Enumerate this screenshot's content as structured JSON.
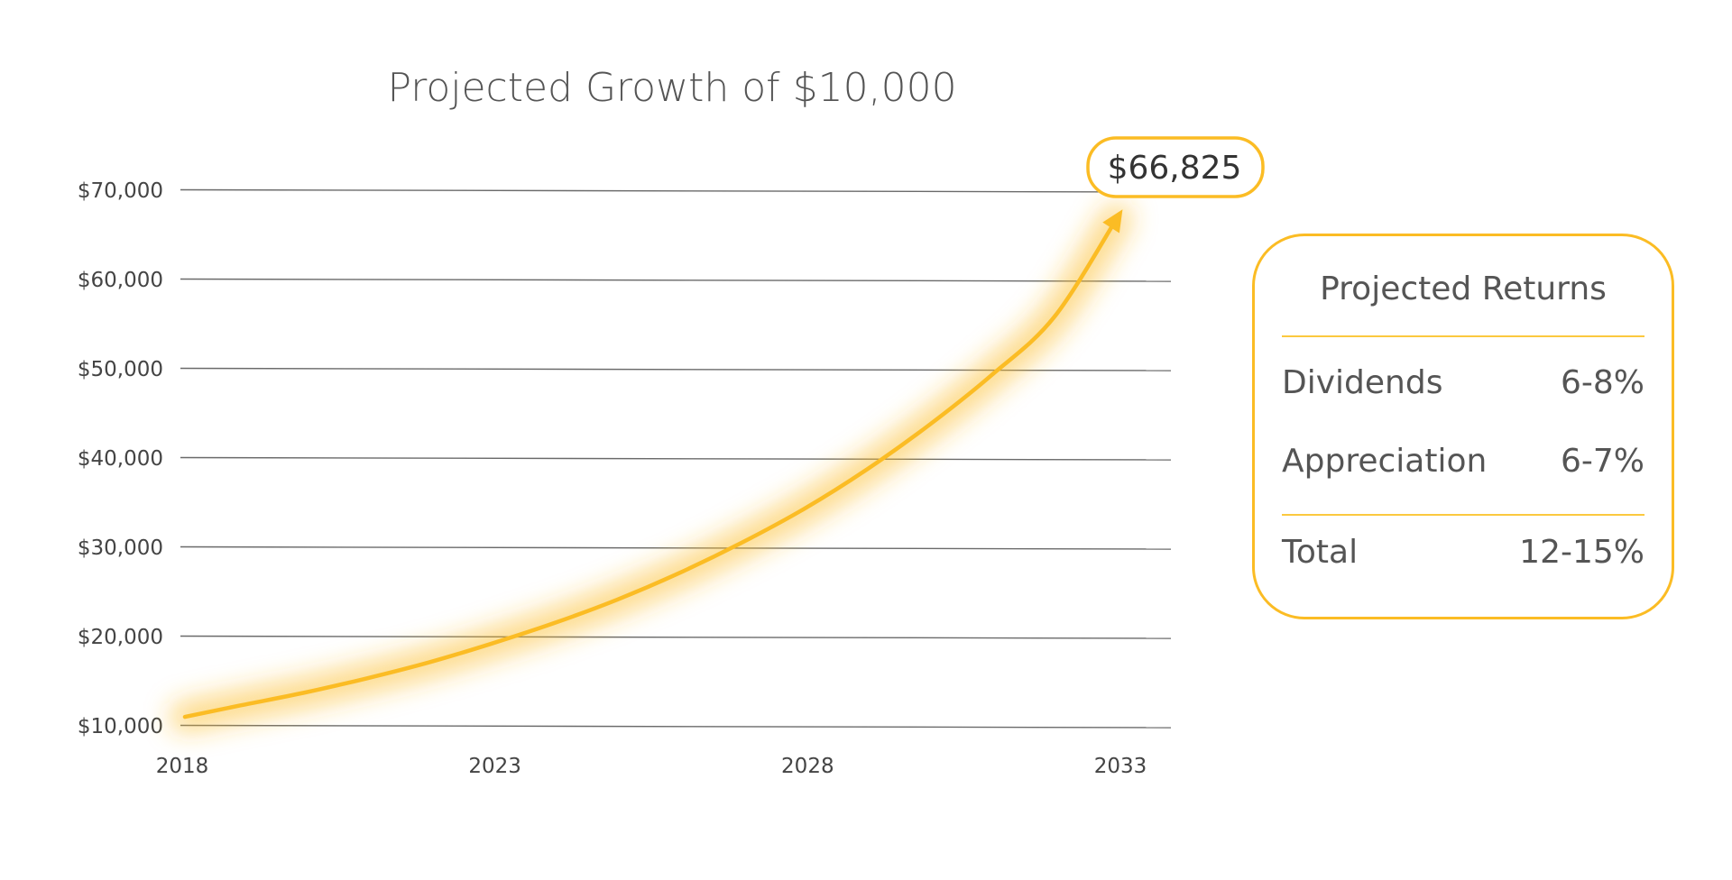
{
  "chart_data": {
    "type": "line",
    "title": "Projected Growth of $10,000",
    "xlabel": "",
    "ylabel": "",
    "x_ticks": [
      "2018",
      "2023",
      "2028",
      "2033"
    ],
    "y_ticks": [
      "$10,000",
      "$20,000",
      "$30,000",
      "$40,000",
      "$50,000",
      "$60,000",
      "$70,000"
    ],
    "ylim": [
      10000,
      70000
    ],
    "xlim": [
      2018,
      2033
    ],
    "grid": true,
    "series": [
      {
        "color": "#fbbc24",
        "style": "curved-arrow-with-glow",
        "x": [
          2018,
          2019,
          2020,
          2021,
          2022,
          2023,
          2024,
          2025,
          2026,
          2027,
          2028,
          2029,
          2030,
          2031,
          2032,
          2033
        ],
        "y": [
          11000,
          12300,
          13700,
          15300,
          17100,
          19200,
          21500,
          24100,
          27100,
          30500,
          34300,
          38700,
          43700,
          49300,
          55800,
          66825
        ]
      }
    ],
    "annotations": [
      {
        "text": "$66,825",
        "x": 2033,
        "y": 66825,
        "style": "rounded-callout"
      }
    ]
  },
  "returns_panel": {
    "title": "Projected Returns",
    "rows": [
      {
        "label": "Dividends",
        "value": "6-8%"
      },
      {
        "label": "Appreciation",
        "value": "6-7%"
      }
    ],
    "total": {
      "label": "Total",
      "value": "12-15%"
    }
  },
  "colors": {
    "accent": "#fbbc24",
    "grid": "#6a6a6a",
    "text": "#444444"
  }
}
